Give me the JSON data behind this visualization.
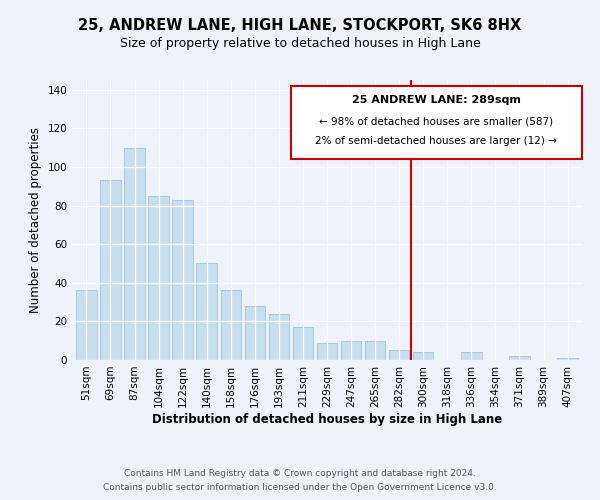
{
  "title": "25, ANDREW LANE, HIGH LANE, STOCKPORT, SK6 8HX",
  "subtitle": "Size of property relative to detached houses in High Lane",
  "xlabel": "Distribution of detached houses by size in High Lane",
  "ylabel": "Number of detached properties",
  "bar_color": "#c8dff0",
  "bar_edge_color": "#a8c8e8",
  "bin_labels": [
    "51sqm",
    "69sqm",
    "87sqm",
    "104sqm",
    "122sqm",
    "140sqm",
    "158sqm",
    "176sqm",
    "193sqm",
    "211sqm",
    "229sqm",
    "247sqm",
    "265sqm",
    "282sqm",
    "300sqm",
    "318sqm",
    "336sqm",
    "354sqm",
    "371sqm",
    "389sqm",
    "407sqm"
  ],
  "bar_heights": [
    36,
    93,
    110,
    85,
    83,
    50,
    36,
    28,
    24,
    17,
    9,
    10,
    10,
    5,
    4,
    0,
    4,
    0,
    2,
    0,
    1
  ],
  "ylim": [
    0,
    145
  ],
  "yticks": [
    0,
    20,
    40,
    60,
    80,
    100,
    120,
    140
  ],
  "vline_x_index": 13.5,
  "vline_color": "#cc0000",
  "annotation_title": "25 ANDREW LANE: 289sqm",
  "annotation_line1": "← 98% of detached houses are smaller (587)",
  "annotation_line2": "2% of semi-detached houses are larger (12) →",
  "footer_line1": "Contains HM Land Registry data © Crown copyright and database right 2024.",
  "footer_line2": "Contains public sector information licensed under the Open Government Licence v3.0.",
  "background_color": "#eef2fb",
  "grid_color": "#ffffff"
}
